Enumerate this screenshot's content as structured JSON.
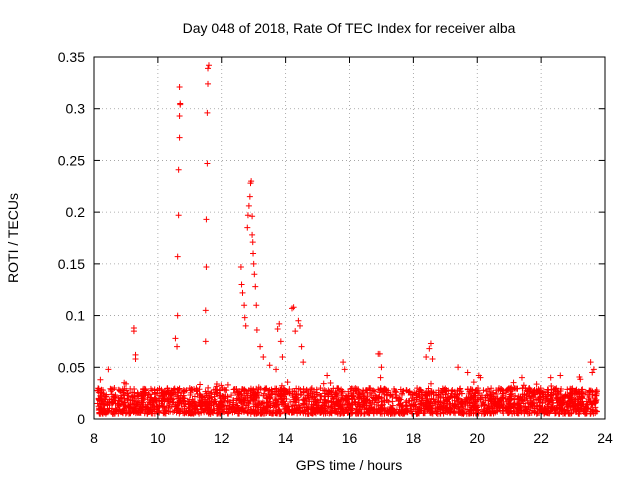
{
  "chart_data": {
    "type": "scatter",
    "title": "Day 048 of 2018, Rate Of TEC Index for receiver alba",
    "xlabel": "GPS time / hours",
    "ylabel": "ROTI / TECUs",
    "xlim": [
      8,
      24
    ],
    "ylim": [
      0,
      0.35
    ],
    "x_ticks": [
      8,
      10,
      12,
      14,
      16,
      18,
      20,
      22,
      24
    ],
    "y_ticks": [
      0,
      0.05,
      0.1,
      0.15,
      0.2,
      0.25,
      0.3,
      0.35
    ],
    "x_tick_labels": [
      "8",
      "10",
      "12",
      "14",
      "16",
      "18",
      "20",
      "22",
      "24"
    ],
    "y_tick_labels": [
      "0",
      "0.05",
      "0.1",
      "0.15",
      "0.2",
      "0.25",
      "0.3",
      "0.35"
    ],
    "grid": true,
    "marker": "+",
    "color": "#ff0000",
    "series": [
      {
        "name": "ROTI",
        "points": [
          [
            8.2,
            0.038
          ],
          [
            8.45,
            0.048
          ],
          [
            9.25,
            0.088
          ],
          [
            9.25,
            0.085
          ],
          [
            9.3,
            0.062
          ],
          [
            9.3,
            0.058
          ],
          [
            10.55,
            0.078
          ],
          [
            10.6,
            0.07
          ],
          [
            10.62,
            0.1
          ],
          [
            10.62,
            0.157
          ],
          [
            10.65,
            0.197
          ],
          [
            10.65,
            0.241
          ],
          [
            10.68,
            0.272
          ],
          [
            10.68,
            0.293
          ],
          [
            10.7,
            0.304
          ],
          [
            10.7,
            0.305
          ],
          [
            10.68,
            0.321
          ],
          [
            11.5,
            0.075
          ],
          [
            11.5,
            0.105
          ],
          [
            11.52,
            0.147
          ],
          [
            11.52,
            0.193
          ],
          [
            11.55,
            0.247
          ],
          [
            11.55,
            0.296
          ],
          [
            11.57,
            0.324
          ],
          [
            11.57,
            0.339
          ],
          [
            11.6,
            0.342
          ],
          [
            12.6,
            0.147
          ],
          [
            12.62,
            0.13
          ],
          [
            12.65,
            0.122
          ],
          [
            12.7,
            0.11
          ],
          [
            12.72,
            0.098
          ],
          [
            12.75,
            0.09
          ],
          [
            12.8,
            0.185
          ],
          [
            12.82,
            0.197
          ],
          [
            12.85,
            0.206
          ],
          [
            12.88,
            0.215
          ],
          [
            12.9,
            0.228
          ],
          [
            12.92,
            0.23
          ],
          [
            12.95,
            0.196
          ],
          [
            12.95,
            0.178
          ],
          [
            12.97,
            0.171
          ],
          [
            12.98,
            0.16
          ],
          [
            13.0,
            0.15
          ],
          [
            13.02,
            0.14
          ],
          [
            13.05,
            0.128
          ],
          [
            13.08,
            0.11
          ],
          [
            13.1,
            0.086
          ],
          [
            13.2,
            0.07
          ],
          [
            13.3,
            0.06
          ],
          [
            13.5,
            0.052
          ],
          [
            13.7,
            0.048
          ],
          [
            13.75,
            0.087
          ],
          [
            13.8,
            0.092
          ],
          [
            13.85,
            0.075
          ],
          [
            13.9,
            0.06
          ],
          [
            14.2,
            0.107
          ],
          [
            14.25,
            0.108
          ],
          [
            14.3,
            0.085
          ],
          [
            14.4,
            0.095
          ],
          [
            14.45,
            0.09
          ],
          [
            14.5,
            0.07
          ],
          [
            14.55,
            0.055
          ],
          [
            15.3,
            0.042
          ],
          [
            15.8,
            0.055
          ],
          [
            15.85,
            0.048
          ],
          [
            16.9,
            0.063
          ],
          [
            16.95,
            0.063
          ],
          [
            17.0,
            0.05
          ],
          [
            18.4,
            0.06
          ],
          [
            18.5,
            0.068
          ],
          [
            18.55,
            0.073
          ],
          [
            18.6,
            0.058
          ],
          [
            19.4,
            0.05
          ],
          [
            19.7,
            0.045
          ],
          [
            20.05,
            0.042
          ],
          [
            20.1,
            0.04
          ],
          [
            21.4,
            0.04
          ],
          [
            22.3,
            0.04
          ],
          [
            22.6,
            0.042
          ],
          [
            23.55,
            0.055
          ],
          [
            23.6,
            0.045
          ],
          [
            23.65,
            0.048
          ]
        ],
        "baseline": {
          "description": "dense background noise band across the full time range",
          "x_range": [
            8.1,
            23.75
          ],
          "y_min": 0.005,
          "y_typical_max": 0.03
        }
      }
    ]
  }
}
